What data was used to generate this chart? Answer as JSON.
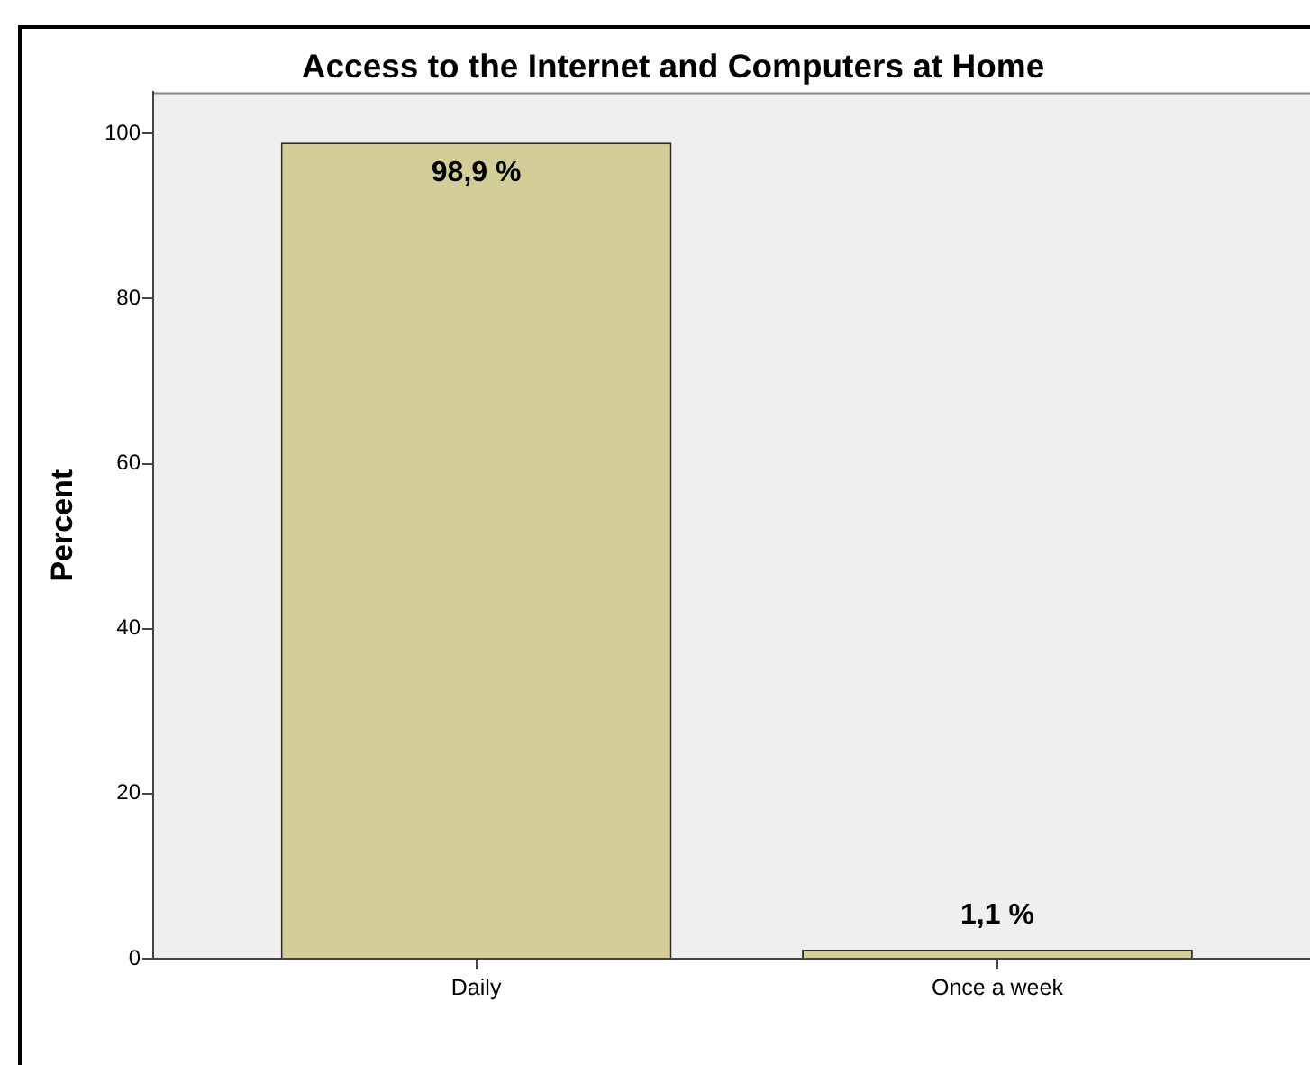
{
  "chart_data": {
    "type": "bar",
    "title": "Access to the Internet and Computers at Home",
    "ylabel": "Percent",
    "categories": [
      "Daily",
      "Once a week"
    ],
    "values": [
      98.9,
      1.1
    ],
    "value_labels": [
      "98,9 %",
      "1,1 %"
    ],
    "color": "#d3ce97",
    "ylim": [
      0,
      105
    ],
    "yticks": [
      0,
      20,
      40,
      60,
      80,
      100
    ],
    "grid": false,
    "legend": false
  }
}
